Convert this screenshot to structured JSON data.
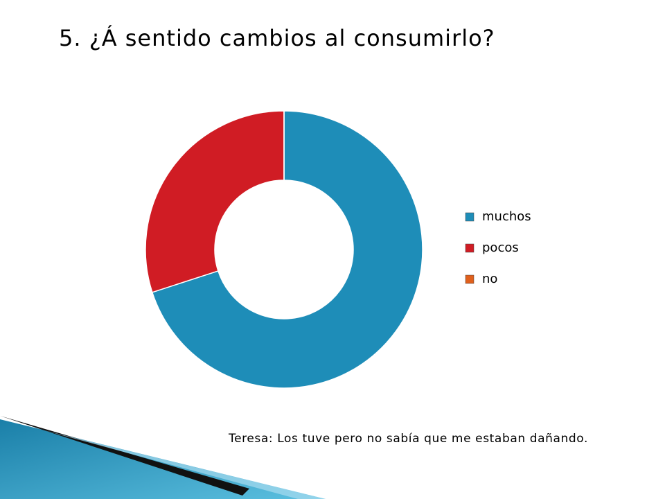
{
  "chart_data": {
    "type": "donut",
    "title": "5. ¿Á sentido cambios al consumirlo?",
    "categories": [
      "muchos",
      "pocos",
      "no"
    ],
    "values": [
      70,
      30,
      0
    ],
    "colors": [
      "#1e8db8",
      "#d01c24",
      "#e0601c"
    ],
    "legend": "right",
    "annotation": "Teresa: Los tuve pero no sabía que me estaban dañando."
  }
}
